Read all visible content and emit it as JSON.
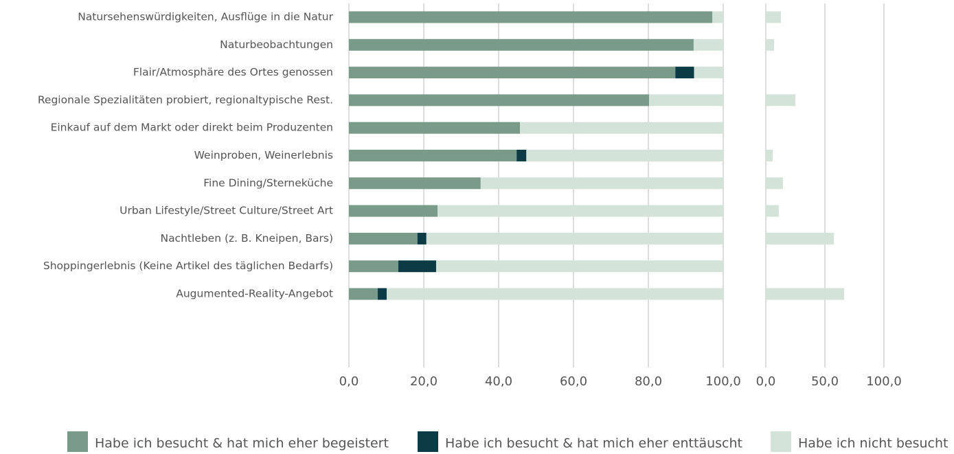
{
  "chart_data": [
    {
      "type": "stacked-bar-horizontal",
      "categories": [
        "Natursehenswürdigkeiten, Ausflüge in die Natur",
        "Naturbeobachtungen",
        "Flair/Atmosphäre des Ortes genossen",
        "Regionale Spezialitäten probiert, regionaltypische Rest.",
        "Einkauf auf dem Markt oder direkt beim Produzenten",
        "Weinproben, Weinerlebnis",
        "Fine Dining/Sterneküche",
        "Urban Lifestyle/Street Culture/Street Art",
        "Nachtleben (z. B. Kneipen, Bars)",
        "Shoppingerlebnis (Keine Artikel des täglichen Bedarfs)",
        "Augumented-Reality-Angebot"
      ],
      "series": [
        {
          "name": "Habe ich besucht & hat mich eher begeistert",
          "color": "#7a9a8a",
          "values": [
            97.1,
            92.1,
            87.2,
            80.2,
            45.7,
            44.8,
            35.2,
            23.7,
            18.3,
            13.2,
            7.7
          ]
        },
        {
          "name": "Habe ich besucht & hat mich eher enttäuscht",
          "color": "#0d3b45",
          "values": [
            0,
            0,
            5.0,
            0,
            0,
            2.6,
            0,
            0,
            2.4,
            10.1,
            2.4
          ]
        },
        {
          "name": "Habe ich nicht besucht",
          "color": "#d4e3da",
          "values": [
            2.9,
            7.9,
            7.8,
            19.8,
            54.3,
            52.6,
            64.8,
            76.3,
            79.3,
            76.7,
            89.9
          ]
        }
      ],
      "xlim": [
        0,
        100
      ],
      "xticks": [
        {
          "value": 0,
          "label": "0,0"
        },
        {
          "value": 20,
          "label": "20,0"
        },
        {
          "value": 40,
          "label": "40,0"
        },
        {
          "value": 60,
          "label": "60,0"
        },
        {
          "value": 80,
          "label": "80,0"
        },
        {
          "value": 100,
          "label": "100,0"
        }
      ],
      "grid": true,
      "legend": "bottom"
    },
    {
      "type": "bar-horizontal",
      "color": "#d4e3da",
      "values": [
        12.8,
        7.0,
        0,
        25.0,
        0,
        5.8,
        14.5,
        11.0,
        57.6,
        0,
        66.3
      ],
      "xlim": [
        0,
        100
      ],
      "xticks": [
        {
          "value": 0,
          "label": "0,0"
        },
        {
          "value": 50,
          "label": "50,0"
        },
        {
          "value": 100,
          "label": "100,0"
        }
      ],
      "grid": true
    }
  ]
}
